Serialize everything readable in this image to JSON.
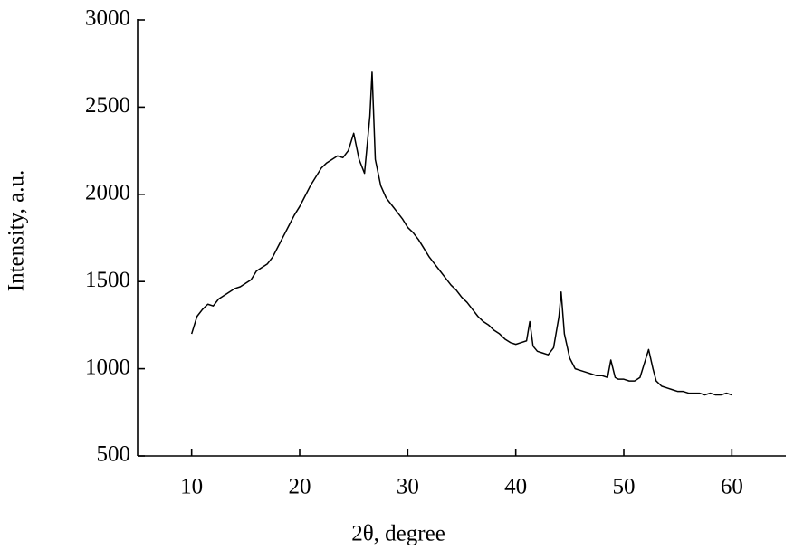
{
  "chart_data": {
    "type": "line",
    "x_label": "2θ, degree",
    "y_label": "Intensity, a.u.",
    "color": "#000000",
    "xlim": [
      5,
      65
    ],
    "xticks": [
      10,
      20,
      30,
      40,
      50,
      60
    ],
    "ylim": [
      500,
      3000
    ],
    "yticks": [
      500,
      1000,
      1500,
      2000,
      2500,
      3000
    ],
    "x": [
      10,
      10.5,
      11,
      11.5,
      12,
      12.5,
      13,
      13.5,
      14,
      14.5,
      15,
      15.5,
      16,
      16.5,
      17,
      17.5,
      18,
      18.5,
      19,
      19.5,
      20,
      20.5,
      21,
      21.5,
      22,
      22.5,
      23,
      23.5,
      24,
      24.5,
      25,
      25.5,
      26,
      26.5,
      26.7,
      27,
      27.5,
      28,
      28.5,
      29,
      29.5,
      30,
      30.5,
      31,
      31.5,
      32,
      32.5,
      33,
      33.5,
      34,
      34.5,
      35,
      35.5,
      36,
      36.5,
      37,
      37.5,
      38,
      38.5,
      39,
      39.5,
      40,
      40.5,
      41,
      41.3,
      41.6,
      42,
      42.5,
      43,
      43.5,
      44,
      44.2,
      44.5,
      45,
      45.5,
      46,
      46.5,
      47,
      47.5,
      48,
      48.5,
      48.8,
      49.2,
      49.5,
      50,
      50.5,
      51,
      51.5,
      52,
      52.3,
      52.7,
      53,
      53.5,
      54,
      54.5,
      55,
      55.5,
      56,
      56.5,
      57,
      57.5,
      58,
      58.5,
      59,
      59.5,
      60
    ],
    "values": [
      1200,
      1300,
      1340,
      1370,
      1360,
      1400,
      1420,
      1440,
      1460,
      1470,
      1490,
      1510,
      1560,
      1580,
      1600,
      1640,
      1700,
      1760,
      1820,
      1880,
      1930,
      1990,
      2050,
      2100,
      2150,
      2180,
      2200,
      2220,
      2210,
      2250,
      2350,
      2200,
      2120,
      2450,
      2700,
      2200,
      2050,
      1980,
      1940,
      1900,
      1860,
      1810,
      1780,
      1740,
      1690,
      1640,
      1600,
      1560,
      1520,
      1480,
      1450,
      1410,
      1380,
      1340,
      1300,
      1270,
      1250,
      1220,
      1200,
      1170,
      1150,
      1140,
      1150,
      1160,
      1270,
      1130,
      1100,
      1090,
      1080,
      1120,
      1300,
      1440,
      1200,
      1060,
      1000,
      990,
      980,
      970,
      960,
      960,
      950,
      1050,
      950,
      940,
      940,
      930,
      930,
      950,
      1050,
      1110,
      1000,
      930,
      900,
      890,
      880,
      870,
      870,
      860,
      860,
      860,
      850,
      860,
      850,
      850,
      860,
      850
    ]
  }
}
